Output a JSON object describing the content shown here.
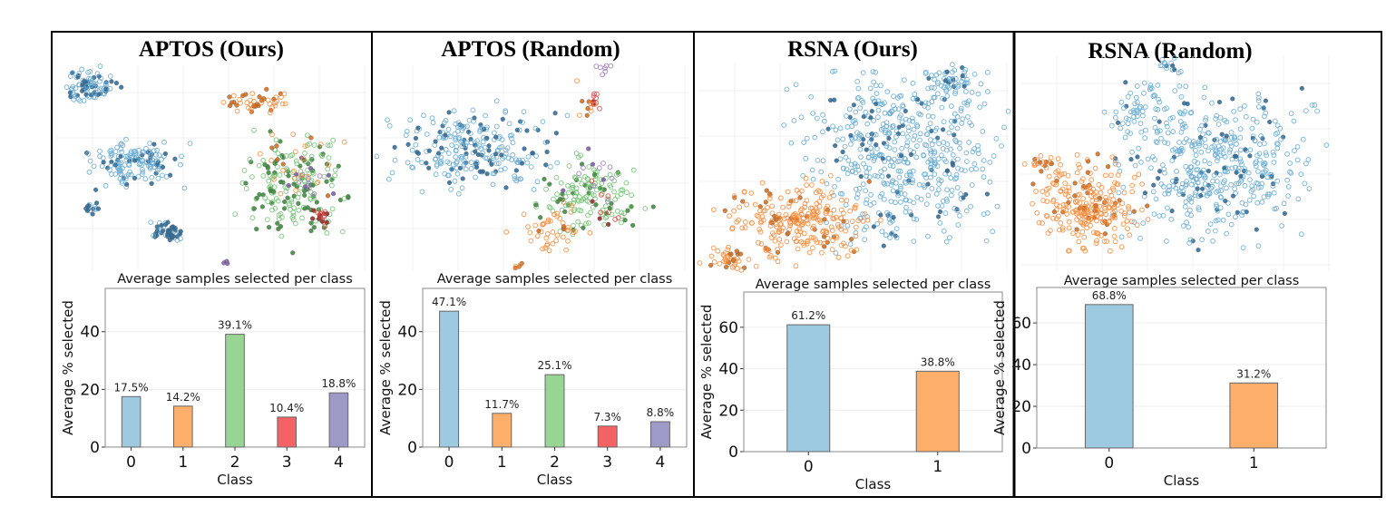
{
  "chart_data": [
    {
      "panel_title": "APTOS (Ours)",
      "scatter": {
        "type": "scatter",
        "classes": [
          "0",
          "1",
          "2",
          "3",
          "4"
        ],
        "style": "filled = selected, hollow = unselected"
      },
      "type": "bar",
      "title": "Average samples selected per class",
      "xlabel": "Class",
      "ylabel": "Average % selected",
      "categories": [
        "0",
        "1",
        "2",
        "3",
        "4"
      ],
      "values": [
        17.5,
        14.2,
        39.1,
        10.4,
        18.8
      ],
      "data_labels": [
        "17.5%",
        "14.2%",
        "39.1%",
        "10.4%",
        "18.8%"
      ],
      "yticks": [
        0,
        20,
        40
      ],
      "ylim": [
        0,
        55
      ],
      "grid": true
    },
    {
      "panel_title": "APTOS (Random)",
      "scatter": {
        "type": "scatter",
        "classes": [
          "0",
          "1",
          "2",
          "3",
          "4"
        ]
      },
      "type": "bar",
      "title": "Average samples selected per class",
      "xlabel": "Class",
      "ylabel": "Average % selected",
      "categories": [
        "0",
        "1",
        "2",
        "3",
        "4"
      ],
      "values": [
        47.1,
        11.7,
        25.1,
        7.3,
        8.8
      ],
      "data_labels": [
        "47.1%",
        "11.7%",
        "25.1%",
        "7.3%",
        "8.8%"
      ],
      "yticks": [
        0,
        20,
        40
      ],
      "ylim": [
        0,
        55
      ],
      "grid": true
    },
    {
      "panel_title": "RSNA (Ours)",
      "scatter": {
        "type": "scatter",
        "classes": [
          "0",
          "1"
        ]
      },
      "type": "bar",
      "title": "Average samples selected per class",
      "xlabel": "Class",
      "ylabel": "Average % selected",
      "categories": [
        "0",
        "1"
      ],
      "values": [
        61.2,
        38.8
      ],
      "data_labels": [
        "61.2%",
        "38.8%"
      ],
      "yticks": [
        0,
        20,
        40,
        60
      ],
      "ylim": [
        0,
        77
      ],
      "grid": true
    },
    {
      "panel_title": "RSNA (Random)",
      "scatter": {
        "type": "scatter",
        "classes": [
          "0",
          "1"
        ]
      },
      "type": "bar",
      "title": "Average samples selected per class",
      "xlabel": "Class",
      "ylabel": "Average % selected",
      "categories": [
        "0",
        "1"
      ],
      "values": [
        68.8,
        31.2
      ],
      "data_labels": [
        "68.8%",
        "31.2%"
      ],
      "yticks": [
        0,
        20,
        40,
        60
      ],
      "ylim": [
        0,
        77
      ],
      "grid": true
    }
  ],
  "colors": {
    "bar": [
      "#9ecae1",
      "#fdae6b",
      "#98d594",
      "#f36366",
      "#9e9ac8"
    ],
    "point_hollow": [
      "#6baed6",
      "#fd8d3c",
      "#74c476",
      "#e34a4a",
      "#a07cc0"
    ],
    "point_filled": [
      "#2f6f9f",
      "#d8701e",
      "#3f8f3f",
      "#a02828",
      "#7d5fa8"
    ]
  }
}
